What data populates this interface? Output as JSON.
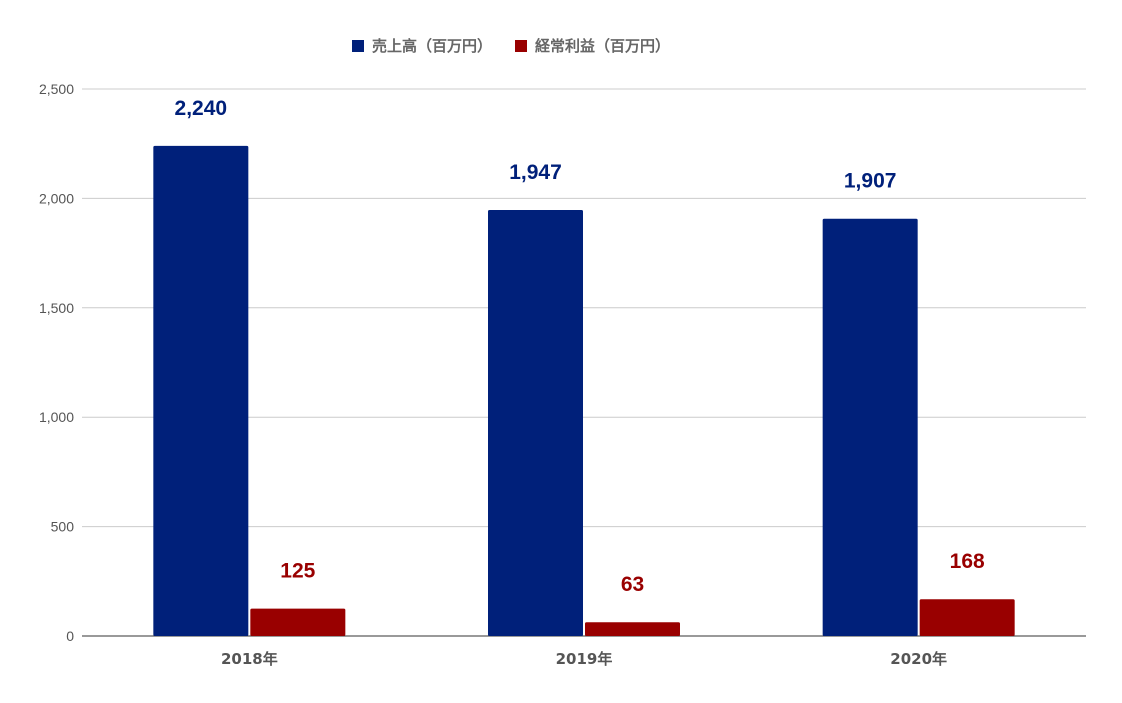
{
  "chart_data": {
    "type": "bar",
    "categories": [
      "2018年",
      "2019年",
      "2020年"
    ],
    "series": [
      {
        "name": "売上高（百万円）",
        "values": [
          2240,
          1947,
          1907
        ],
        "color": "#00207a",
        "labels": [
          "2,240",
          "1,947",
          "1,907"
        ]
      },
      {
        "name": "経常利益（百万円）",
        "values": [
          125,
          63,
          168
        ],
        "color": "#990000",
        "labels": [
          "125",
          "63",
          "168"
        ]
      }
    ],
    "yticks": [
      "0",
      "500",
      "1,000",
      "1,500",
      "2,000",
      "2,500"
    ],
    "ytick_values": [
      0,
      500,
      1000,
      1500,
      2000,
      2500
    ],
    "ylim": [
      0,
      2500
    ],
    "grid": true,
    "legend_position": "top-center"
  }
}
